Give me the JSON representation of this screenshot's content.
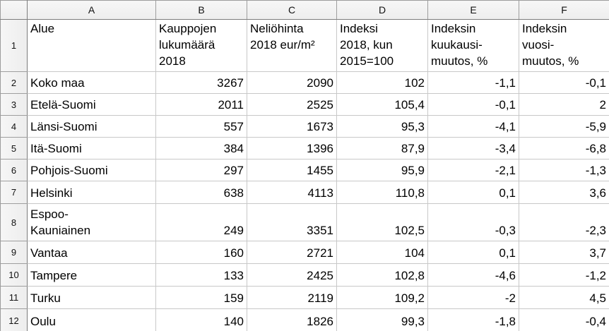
{
  "sheet": {
    "corner_label": "",
    "col_letters": [
      "A",
      "B",
      "C",
      "D",
      "E",
      "F"
    ],
    "row_numbers": [
      "1",
      "2",
      "3",
      "4",
      "5",
      "6",
      "7",
      "8",
      "9",
      "10",
      "11",
      "12"
    ],
    "header_row": [
      "Alue",
      "Kauppojen\nlukumäärä\n2018",
      "Neliöhinta\n2018 eur/m²",
      "Indeksi\n2018, kun\n2015=100",
      "Indeksin\nkuukausi-\nmuutos, %",
      "Indeksin\nvuosi-\nmuutos, %"
    ],
    "rows": [
      [
        "Koko maa",
        "3267",
        "2090",
        "102",
        "-1,1",
        "-0,1"
      ],
      [
        "Etelä-Suomi",
        "2011",
        "2525",
        "105,4",
        "-0,1",
        "2"
      ],
      [
        "Länsi-Suomi",
        "557",
        "1673",
        "95,3",
        "-4,1",
        "-5,9"
      ],
      [
        "Itä-Suomi",
        "384",
        "1396",
        "87,9",
        "-3,4",
        "-6,8"
      ],
      [
        "Pohjois-Suomi",
        "297",
        "1455",
        "95,9",
        "-2,1",
        "-1,3"
      ],
      [
        "Helsinki",
        "638",
        "4113",
        "110,8",
        "0,1",
        "3,6"
      ],
      [
        "Espoo-\nKauniainen",
        "249",
        "3351",
        "102,5",
        "-0,3",
        "-2,3"
      ],
      [
        "Vantaa",
        "160",
        "2721",
        "104",
        "0,1",
        "3,7"
      ],
      [
        "Tampere",
        "133",
        "2425",
        "102,8",
        "-4,6",
        "-1,2"
      ],
      [
        "Turku",
        "159",
        "2119",
        "109,2",
        "-2",
        "4,5"
      ],
      [
        "Oulu",
        "140",
        "1826",
        "99,3",
        "-1,8",
        "-0,4"
      ]
    ]
  },
  "colors": {
    "grid_line": "#c8c8c8",
    "header_bg": "#f2f2f2",
    "header_strong_border": "#7d7d7d",
    "header_separator": "#9e9e9e",
    "cell_text": "#000000"
  }
}
